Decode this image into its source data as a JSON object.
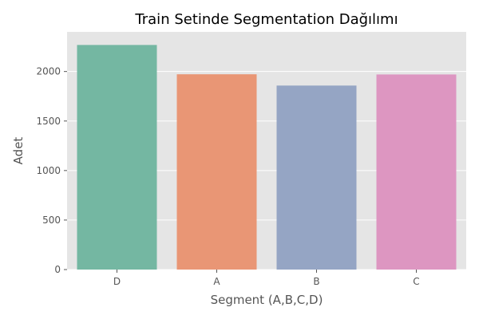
{
  "chart_data": {
    "type": "bar",
    "title": "Train Setinde Segmentation Dağılımı",
    "xlabel": "Segment (A,B,C,D)",
    "ylabel": "Adet",
    "categories": [
      "D",
      "A",
      "B",
      "C"
    ],
    "values": [
      2268,
      1972,
      1858,
      1970
    ],
    "colors": [
      "#74b7a2",
      "#e99675",
      "#95a5c4",
      "#dd96c1"
    ],
    "ylim": [
      0,
      2400
    ],
    "yticks": [
      0,
      500,
      1000,
      1500,
      2000
    ],
    "grid": true,
    "plot_background": "#e5e5e5",
    "grid_color": "#ffffff"
  }
}
